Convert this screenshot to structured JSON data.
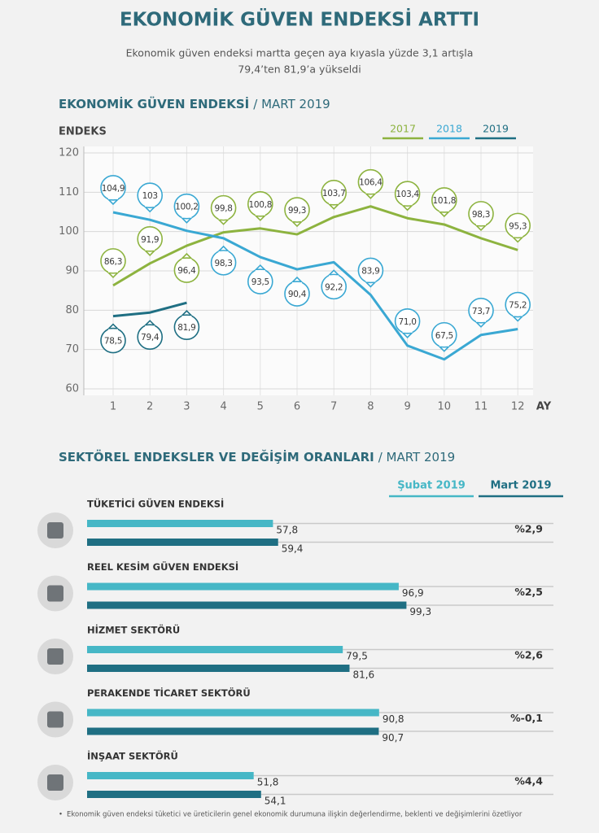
{
  "header": {
    "title": "EKONOMİK GÜVEN ENDEKSİ ARTTI",
    "subtitle_lines": [
      "Ekonomik güven endeksi martta geçen aya kıyasla yüzde 3,1 artışla",
      "79,4’ten 81,9’a yükseldi"
    ]
  },
  "chart_data": [
    {
      "type": "line",
      "title": "EKONOMİK GÜVEN ENDEKSİ",
      "subtitle": "/ MART 2019",
      "ylabel": "ENDEKS",
      "xlabel": "AY",
      "categories": [
        1,
        2,
        3,
        4,
        5,
        6,
        7,
        8,
        9,
        10,
        11,
        12
      ],
      "ylim": [
        60,
        120
      ],
      "yticks": [
        60,
        70,
        80,
        90,
        100,
        110,
        120
      ],
      "grid": true,
      "series": [
        {
          "name": "2017",
          "color": "#8db33f",
          "values": [
            86.3,
            91.9,
            96.4,
            99.8,
            100.8,
            99.3,
            103.7,
            106.4,
            103.4,
            101.8,
            98.3,
            95.3
          ],
          "value_labels": [
            "86,3",
            "91,9",
            "96,4",
            "99,8",
            "100,8",
            "99,3",
            "103,7",
            "106,4",
            "103,4",
            "101,8",
            "98,3",
            "95,3"
          ]
        },
        {
          "name": "2018",
          "color": "#3aa8d3",
          "values": [
            104.9,
            103,
            100.2,
            98.3,
            93.5,
            90.4,
            92.2,
            83.9,
            71.0,
            67.5,
            73.7,
            75.2
          ],
          "value_labels": [
            "104,9",
            "103",
            "100,2",
            "98,3",
            "93,5",
            "90,4",
            "92,2",
            "83,9",
            "71,0",
            "67,5",
            "73,7",
            "75,2"
          ]
        },
        {
          "name": "2019",
          "color": "#1f6f83",
          "values": [
            78.5,
            79.4,
            81.9,
            null,
            null,
            null,
            null,
            null,
            null,
            null,
            null,
            null
          ],
          "value_labels": [
            "78,5",
            "79,4",
            "81,9",
            null,
            null,
            null,
            null,
            null,
            null,
            null,
            null,
            null
          ]
        }
      ]
    },
    {
      "type": "bar",
      "orientation": "horizontal",
      "title": "SEKTÖREL ENDEKSLER VE DEĞİŞİM ORANLARI",
      "subtitle": "/ MART 2019",
      "categories": [
        "TÜKETİCİ GÜVEN ENDEKSİ",
        "REEL KESİM GÜVEN ENDEKSİ",
        "HİZMET SEKTÖRÜ",
        "PERAKENDE TİCARET SEKTÖRÜ",
        "İNŞAAT SEKTÖRÜ"
      ],
      "xlim": [
        0,
        145
      ],
      "series": [
        {
          "name": "Şubat 2019",
          "color": "#46b7c6",
          "values": [
            57.8,
            96.9,
            79.5,
            90.8,
            51.8
          ],
          "value_labels": [
            "57,8",
            "96,9",
            "79,5",
            "90,8",
            "51,8"
          ]
        },
        {
          "name": "Mart 2019",
          "color": "#1f6f83",
          "values": [
            59.4,
            99.3,
            81.6,
            90.7,
            54.1
          ],
          "value_labels": [
            "59,4",
            "99,3",
            "81,6",
            "90,7",
            "54,1"
          ]
        }
      ],
      "changes": [
        2.9,
        2.5,
        2.6,
        -0.1,
        4.4
      ],
      "change_labels": [
        "%2,9",
        "%2,5",
        "%2,6",
        "%-0,1",
        "%4,4"
      ]
    }
  ],
  "footnote": "Ekonomik güven endeksi tüketici ve üreticilerin genel ekonomik durumuna ilişkin değerlendirme, beklenti ve değişimlerini özetliyor"
}
